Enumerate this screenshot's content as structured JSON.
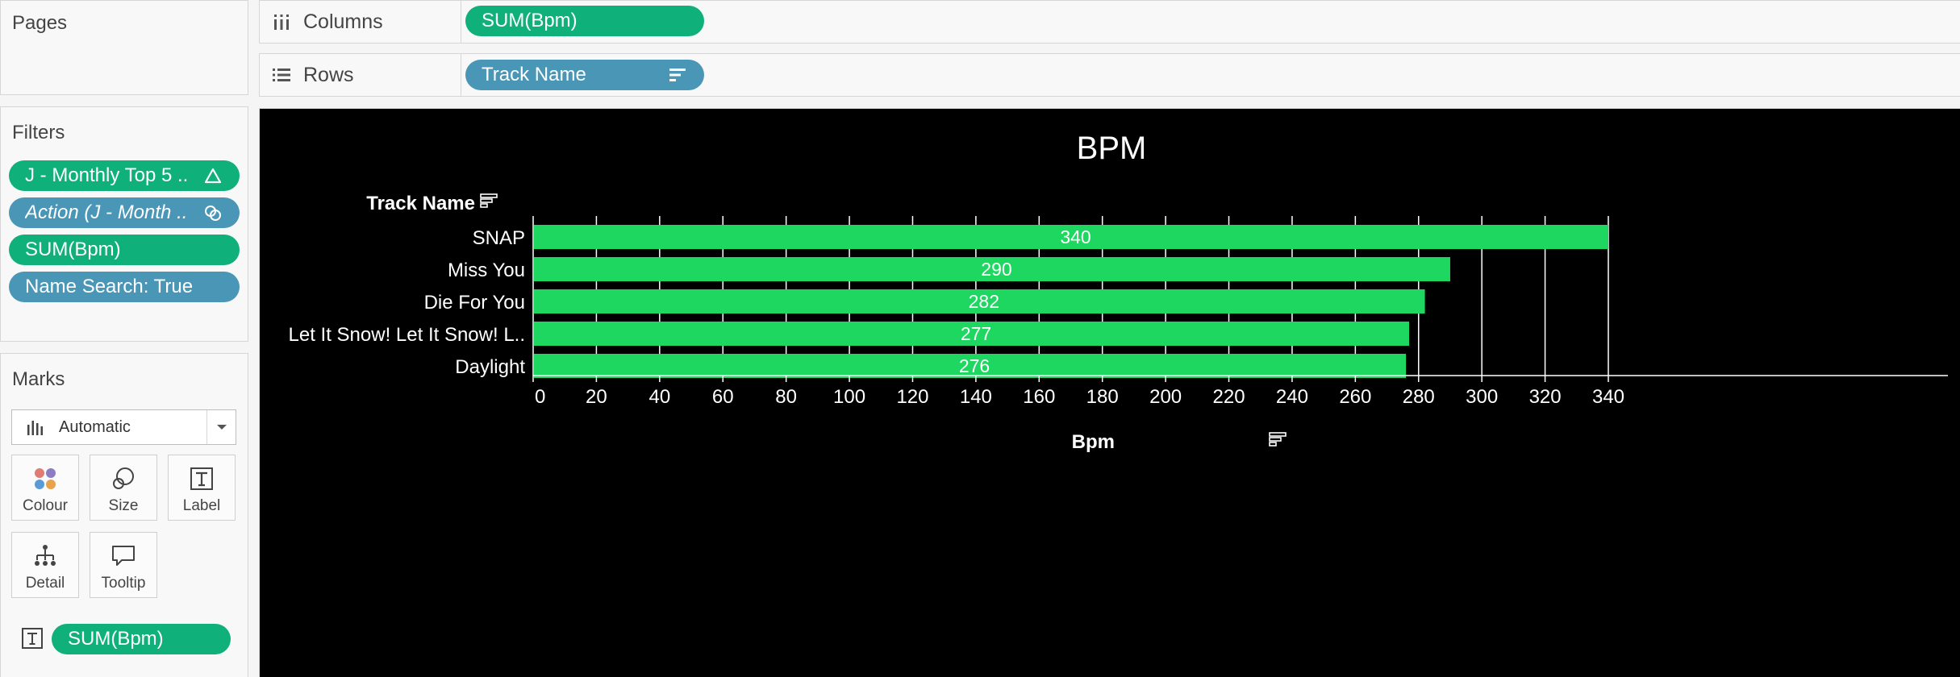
{
  "pages": {
    "title": "Pages"
  },
  "shelves": {
    "columns": {
      "label": "Columns",
      "pill": "SUM(Bpm)"
    },
    "rows": {
      "label": "Rows",
      "pill": "Track Name"
    }
  },
  "filters": {
    "title": "Filters",
    "items": [
      {
        "label": "J - Monthly Top 5 ..",
        "style": "green",
        "icon": "delta-icon"
      },
      {
        "label": "Action (J - Month ..",
        "style": "blue",
        "icon": "linked-filter-icon"
      },
      {
        "label": "SUM(Bpm)",
        "style": "green",
        "icon": ""
      },
      {
        "label": "Name Search: True",
        "style": "blue",
        "icon": ""
      }
    ]
  },
  "marks": {
    "title": "Marks",
    "type": "Automatic",
    "buttons": [
      {
        "label": "Colour",
        "icon": "colour-icon"
      },
      {
        "label": "Size",
        "icon": "size-icon"
      },
      {
        "label": "Label",
        "icon": "label-icon"
      },
      {
        "label": "Detail",
        "icon": "detail-icon"
      },
      {
        "label": "Tooltip",
        "icon": "tooltip-icon"
      }
    ],
    "label_field": "SUM(Bpm)"
  },
  "colors": {
    "bar": "#1ed760",
    "viz_background": "#000000",
    "pill_green": "#0fb07a",
    "pill_blue": "#4a96b6"
  },
  "chart_data": {
    "type": "bar",
    "orientation": "horizontal",
    "title": "BPM",
    "row_header": "Track Name",
    "xlabel": "Bpm",
    "categories": [
      "SNAP",
      "Miss You",
      "Die For You",
      "Let It Snow! Let It Snow! L..",
      "Daylight"
    ],
    "values": [
      340,
      290,
      282,
      277,
      276
    ],
    "data_labels": [
      "340",
      "290",
      "282",
      "277",
      "276"
    ],
    "xlim": [
      0,
      340
    ],
    "xticks": [
      0,
      20,
      40,
      60,
      80,
      100,
      120,
      140,
      160,
      180,
      200,
      220,
      240,
      260,
      280,
      300,
      320,
      340
    ],
    "grid": true
  }
}
